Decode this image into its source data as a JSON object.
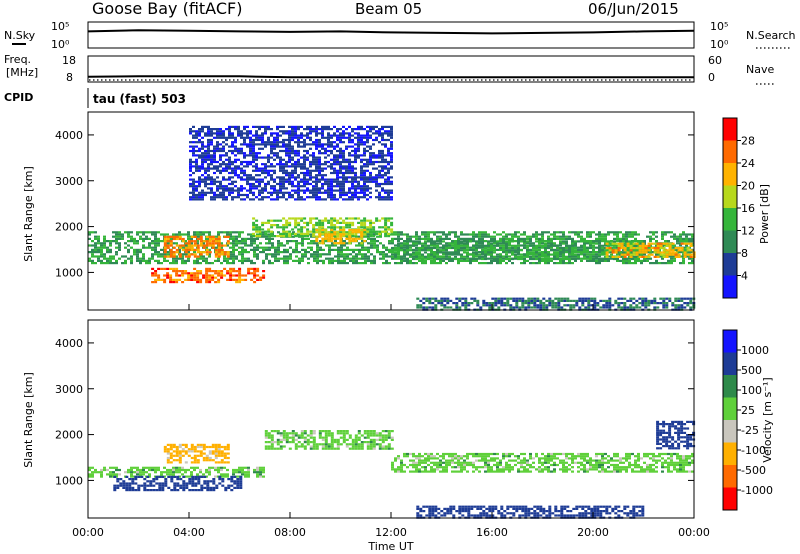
{
  "header": {
    "station": "Goose Bay (fitACF)",
    "beam": "Beam 05",
    "date": "06/Jun/2015"
  },
  "noise_panel": {
    "left_label": "N.Sky",
    "right_label": "N.Search",
    "left_ticks": [
      "10^5",
      "10^0"
    ],
    "right_ticks": [
      "10^5",
      "10^0"
    ]
  },
  "freq_panel": {
    "left_label_1": "Freq.",
    "left_label_2": "[MHz]",
    "right_label": "Nave",
    "left_ticks": [
      "18",
      "8"
    ],
    "right_ticks": [
      "60",
      "0"
    ]
  },
  "cpid": {
    "label": "CPID",
    "value": "tau (fast) 503"
  },
  "power_panel": {
    "ylabel": "Slant Range [km]",
    "yticks": [
      "4000",
      "3000",
      "2000",
      "1000"
    ],
    "colorbar_label": "Power [dB]",
    "colorbar_ticks": [
      "28",
      "24",
      "20",
      "16",
      "12",
      "8",
      "4"
    ]
  },
  "velocity_panel": {
    "ylabel": "Slant Range [km]",
    "yticks": [
      "4000",
      "3000",
      "2000",
      "1000"
    ],
    "colorbar_label": "Velocity [m s^-1]",
    "colorbar_ticks": [
      "1000",
      "500",
      "100",
      "25",
      "-25",
      "-100",
      "-500",
      "-1000"
    ]
  },
  "xaxis": {
    "label": "Time UT",
    "ticks": [
      "00:00",
      "04:00",
      "08:00",
      "12:00",
      "16:00",
      "20:00",
      "00:00"
    ]
  },
  "colors": {
    "power_scale": [
      "#1414ff",
      "#1e3c96",
      "#2f8a55",
      "#35b53a",
      "#b7d81c",
      "#ffb300",
      "#ff6a00",
      "#ff0000"
    ],
    "velocity_scale": [
      "#ff0000",
      "#ff6a00",
      "#ffb000",
      "#c9c6bd",
      "#5fd03a",
      "#2e8a4a",
      "#1e3c96",
      "#1414ff"
    ],
    "ground_scatter": "#c9c6bd"
  },
  "chart_data": [
    {
      "type": "line",
      "title": "N.Sky / N.Search",
      "x_unit": "hours UT",
      "xlim": [
        0,
        24
      ],
      "x": [
        0,
        2,
        4,
        6,
        8,
        10,
        12,
        14,
        16,
        18,
        20,
        22,
        24
      ],
      "series": [
        {
          "name": "N.Sky",
          "values": [
            3.2,
            3.4,
            3.3,
            3.2,
            3.1,
            3.2,
            3.0,
            2.9,
            2.8,
            2.9,
            3.0,
            3.2,
            3.3
          ]
        }
      ]
    },
    {
      "type": "line",
      "title": "Freq. / Nave",
      "x_unit": "hours UT",
      "xlim": [
        0,
        24
      ],
      "x": [
        0,
        2,
        4,
        6,
        8,
        10,
        12,
        14,
        16,
        18,
        20,
        22,
        24
      ],
      "series": [
        {
          "name": "Freq.",
          "values": [
            10.0,
            10.2,
            10.2,
            10.2,
            9.8,
            9.8,
            9.8,
            9.8,
            9.8,
            9.8,
            9.8,
            9.8,
            9.8
          ]
        }
      ]
    },
    {
      "type": "heatmap",
      "title": "Power [dB]",
      "xlabel": "Time UT",
      "ylabel": "Slant Range [km]",
      "xlim": [
        0,
        24
      ],
      "ylim": [
        180,
        4500
      ],
      "clim": [
        0,
        30
      ],
      "regions": [
        {
          "t0": 0.0,
          "t1": 24.0,
          "r0": 1200,
          "r1": 1900,
          "value": 12
        },
        {
          "t0": 2.5,
          "t1": 7.0,
          "r0": 800,
          "r1": 1100,
          "value": 26
        },
        {
          "t0": 3.0,
          "t1": 5.5,
          "r0": 1350,
          "r1": 1800,
          "value": 25
        },
        {
          "t0": 6.5,
          "t1": 12.0,
          "r0": 1800,
          "r1": 2200,
          "value": 16
        },
        {
          "t0": 9.0,
          "t1": 11.0,
          "r0": 1650,
          "r1": 1950,
          "value": 21
        },
        {
          "t0": 12.0,
          "t1": 22.0,
          "r0": 1300,
          "r1": 1700,
          "value": 12
        },
        {
          "t0": 20.5,
          "t1": 24.0,
          "r0": 1350,
          "r1": 1650,
          "value": 22
        },
        {
          "t0": 4.0,
          "t1": 12.0,
          "r0": 2600,
          "r1": 4200,
          "value": 5
        },
        {
          "t0": 13.0,
          "t1": 24.0,
          "r0": 200,
          "r1": 450,
          "value": 8
        }
      ]
    },
    {
      "type": "heatmap",
      "title": "Velocity [m s^-1]",
      "xlabel": "Time UT",
      "ylabel": "Slant Range [km]",
      "xlim": [
        0,
        24
      ],
      "ylim": [
        180,
        4500
      ],
      "levels": [
        -1000,
        -500,
        -100,
        -25,
        25,
        100,
        500,
        1000
      ],
      "regions": [
        {
          "t0": 7.0,
          "t1": 12.0,
          "r0": 1700,
          "r1": 2100,
          "value": 0
        },
        {
          "t0": 12.0,
          "t1": 24.0,
          "r0": 1200,
          "r1": 1600,
          "value": 0
        },
        {
          "t0": 0.0,
          "t1": 7.0,
          "r0": 1100,
          "r1": 1300,
          "value": 0
        },
        {
          "t0": 1.0,
          "t1": 6.0,
          "r0": 800,
          "r1": 1100,
          "value": 150
        },
        {
          "t0": 3.0,
          "t1": 5.5,
          "r0": 1400,
          "r1": 1800,
          "value": -120
        },
        {
          "t0": 13.0,
          "t1": 22.0,
          "r0": 200,
          "r1": 450,
          "value": 150
        },
        {
          "t0": 22.5,
          "t1": 24.0,
          "r0": 1700,
          "r1": 2300,
          "value": 150
        }
      ]
    }
  ]
}
